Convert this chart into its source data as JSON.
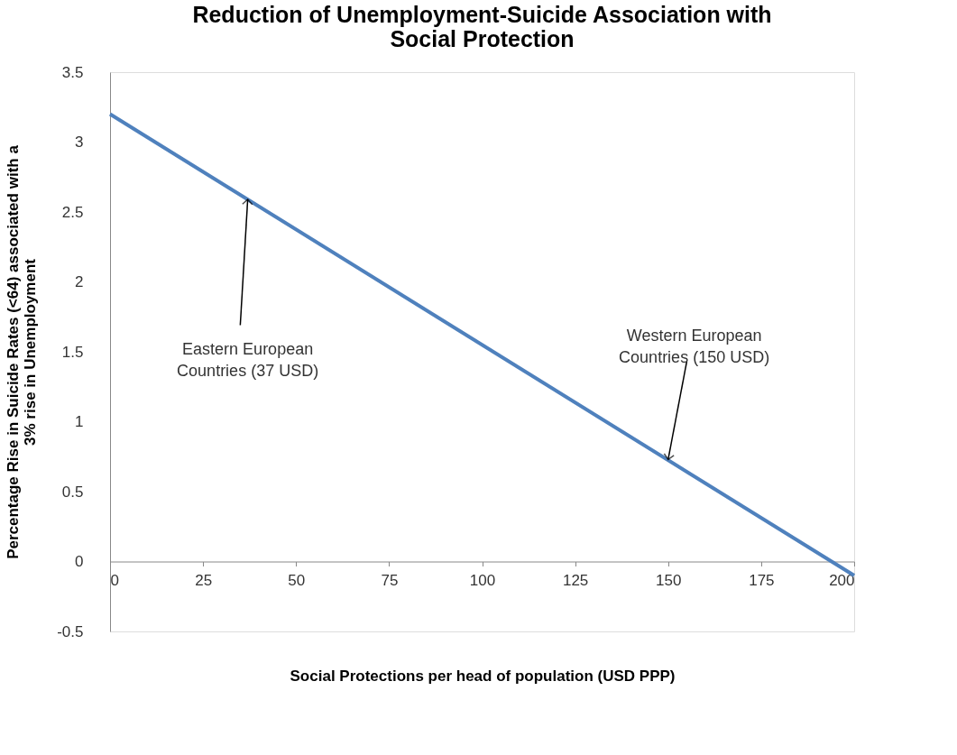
{
  "chart_data": {
    "type": "line",
    "title": [
      "Reduction of Unemployment-Suicide Association with",
      "Social Protection"
    ],
    "xlabel": "Social Protections per head of population (USD PPP)",
    "ylabel": [
      "Percentage Rise in Suicide Rates (<64)  associated with a",
      "3% rise in Unemployment"
    ],
    "x": [
      0,
      200
    ],
    "series": [
      {
        "color": "#4f81bd",
        "values": [
          3.2,
          -0.1
        ]
      }
    ],
    "xlim": [
      0,
      200
    ],
    "xticks": [
      0,
      25,
      50,
      75,
      100,
      125,
      150,
      175,
      200
    ],
    "ylim": [
      -0.5,
      3.5
    ],
    "yticks": [
      -0.5,
      0,
      0.5,
      1,
      1.5,
      2,
      2.5,
      3,
      3.5
    ],
    "grid": false,
    "marker": "none",
    "line_style": "solid",
    "annotations": [
      {
        "text": "Eastern European Countries (37 USD)",
        "x": 37,
        "y": 2.59
      },
      {
        "text": "Western European Countries (150 USD)",
        "x": 150,
        "y": 0.73
      }
    ]
  }
}
